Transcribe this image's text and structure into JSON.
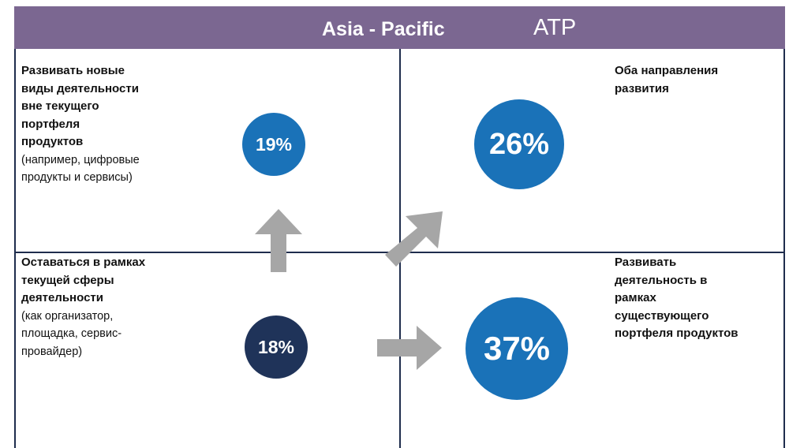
{
  "header": {
    "title": "Asia - Pacific",
    "subtitle": "ATP"
  },
  "quadrants": [
    {
      "bold": [
        "Развивать новые",
        "виды деятельности",
        "вне текущего",
        "портфеля",
        "продуктов"
      ],
      "note": [
        "(например, цифровые",
        "продукты и сервисы)"
      ],
      "share": "19%"
    },
    {
      "bold": [
        "Оба направления",
        "развития"
      ],
      "note": [],
      "share": "26%"
    },
    {
      "bold": [
        "Оставаться в рамках",
        "текущей сферы",
        "деятельности"
      ],
      "note": [
        "(как организатор,",
        "площадка, сервис-",
        "провайдер)"
      ],
      "share": "18%"
    },
    {
      "bold": [
        "Развивать",
        "деятельность в",
        "рамках",
        "существующего",
        "портфеля продуктов"
      ],
      "note": [],
      "share": "37%"
    }
  ]
}
